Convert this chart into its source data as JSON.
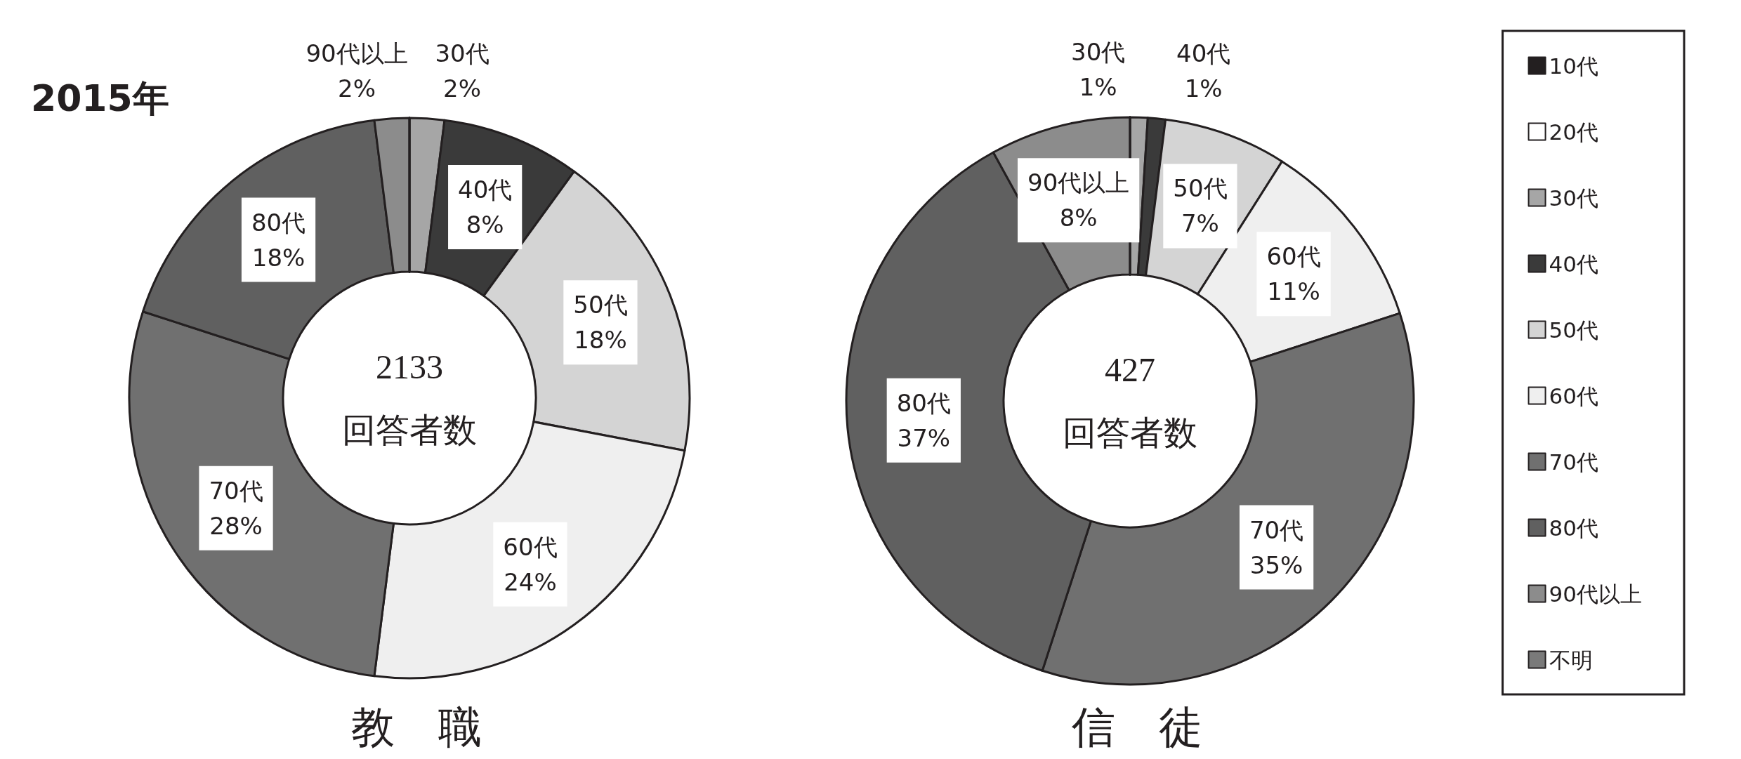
{
  "chart_data": [
    {
      "type": "donut",
      "title": "2015年",
      "xlabel": "教　職",
      "annotations": [
        "2133",
        "回答者数"
      ],
      "categories": [
        null,
        null,
        "30代",
        "40代",
        "50代",
        "60代",
        "70代",
        "80代",
        "90代以上",
        null
      ],
      "values": [
        0,
        0,
        2,
        8,
        18,
        24,
        28,
        18,
        2,
        0
      ],
      "value_labels": [
        null,
        null,
        "2%",
        "8%",
        "18%",
        "24%",
        "28%",
        "18%",
        "2%",
        null
      ],
      "colors": [
        "#231f20",
        "#ffffff",
        "#a6a6a6",
        "#3a3a3a",
        "#d4d4d4",
        "#efefef",
        "#707070",
        "#606060",
        "#8c8c8c",
        "#7a7a7a"
      ]
    },
    {
      "type": "donut",
      "xlabel": "信　徒",
      "annotations": [
        "427",
        "回答者数"
      ],
      "categories": [
        "10代",
        "20代",
        "30代",
        "40代",
        "50代",
        "60代",
        "70代",
        "80代",
        "90代以上",
        "不明"
      ],
      "values": [
        0,
        0,
        1,
        1,
        7,
        11,
        35,
        37,
        8,
        0
      ],
      "value_labels": [
        null,
        null,
        "1%",
        "1%",
        "7%",
        "11%",
        "35%",
        "37%",
        "8%",
        null
      ],
      "colors": [
        "#231f20",
        "#ffffff",
        "#a6a6a6",
        "#3a3a3a",
        "#d4d4d4",
        "#efefef",
        "#707070",
        "#606060",
        "#8c8c8c",
        "#7a7a7a"
      ],
      "legend": "right"
    }
  ]
}
